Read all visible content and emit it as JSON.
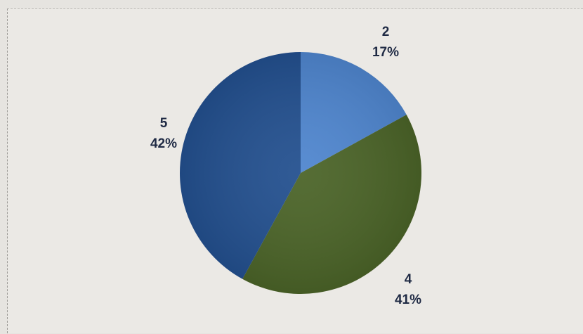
{
  "chart_data": {
    "type": "pie",
    "title": "",
    "categories": [
      "2",
      "4",
      "5"
    ],
    "values": [
      17,
      41,
      42
    ],
    "percent_labels": [
      "17%",
      "41%",
      "42%"
    ],
    "colors": [
      "#4f86cf",
      "#4b6428",
      "#23508f"
    ],
    "start_angle_deg": 0,
    "direction": "clockwise",
    "legend": "none",
    "data_labels": "category and percentage, outside slices"
  }
}
